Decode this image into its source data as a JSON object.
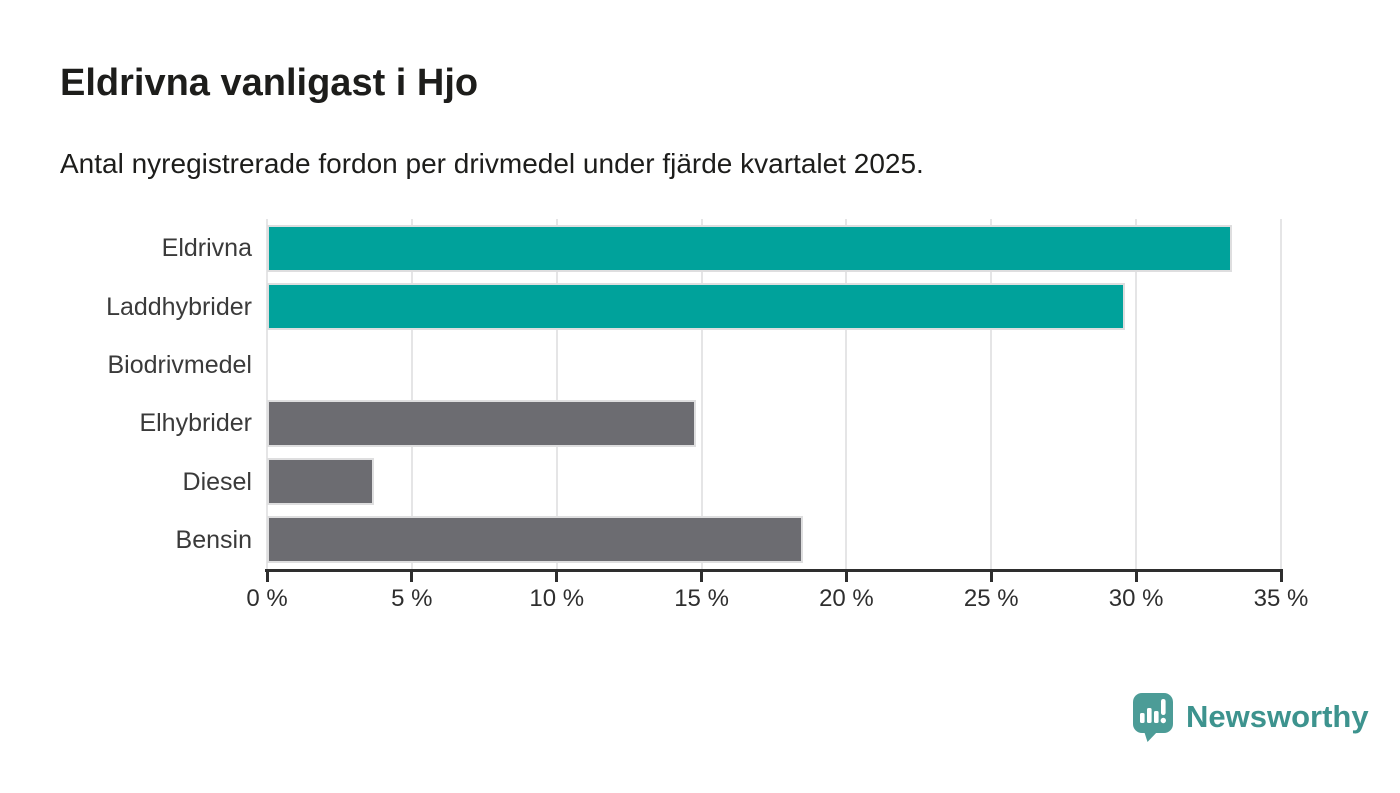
{
  "header": {
    "title": "Eldrivna vanligast i Hjo",
    "subtitle": "Antal nyregistrerade fordon per drivmedel under fjärde kvartalet 2025."
  },
  "chart_data": {
    "type": "bar",
    "orientation": "horizontal",
    "title": "Eldrivna vanligast i Hjo",
    "subtitle": "Antal nyregistrerade fordon per drivmedel under fjärde kvartalet 2025.",
    "categories": [
      "Eldrivna",
      "Laddhybrider",
      "Biodrivmedel",
      "Elhybrider",
      "Diesel",
      "Bensin"
    ],
    "values": [
      33.3,
      29.6,
      0,
      14.8,
      3.7,
      18.5
    ],
    "unit": "%",
    "xlabel": "",
    "ylabel": "",
    "xlim": [
      0,
      35
    ],
    "x_tick_values": [
      0,
      5,
      10,
      15,
      20,
      25,
      30,
      35
    ],
    "x_tick_labels": [
      "0 %",
      "5 %",
      "10 %",
      "15 %",
      "20 %",
      "25 %",
      "30 %",
      "35 %"
    ],
    "grid": "vertical-on",
    "legend": "none",
    "bar_colors": [
      "#00a29b",
      "#00a29b",
      "#6c6c71",
      "#6c6c71",
      "#6c6c71",
      "#6c6c71"
    ],
    "colors": {
      "accent_teal": "#00a29b",
      "neutral_gray": "#6c6c71",
      "axis": "#2e2e2e",
      "gridline": "#e5e5e6",
      "text": "#1d1d1b"
    }
  },
  "footer": {
    "brand": "Newsworthy",
    "brand_color": "#3d938e",
    "logo_icon": "newsworthy-speech-bubble-bar-chart-icon"
  }
}
